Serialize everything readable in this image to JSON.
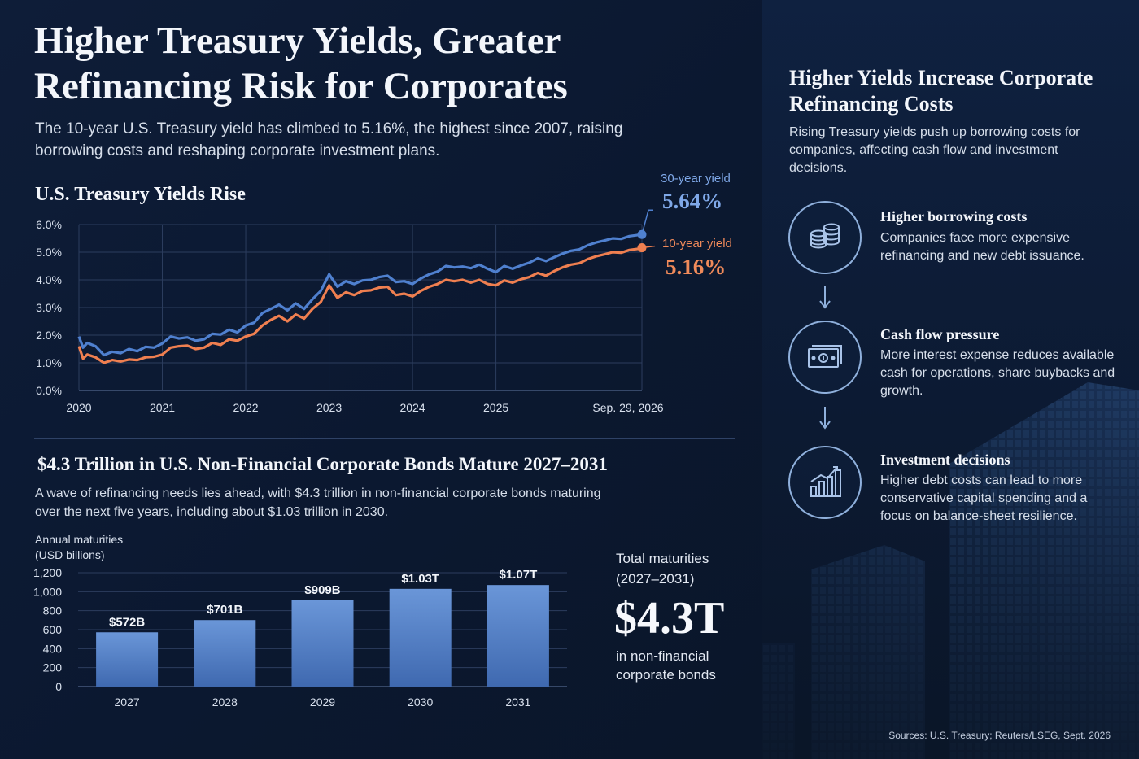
{
  "header": {
    "title": "Higher Treasury Yields, Greater Refinancing Risk for Corporates",
    "subtitle": "The 10-year U.S. Treasury yield has climbed to 5.16%, the highest since 2007, raising borrowing costs and reshaping corporate investment plans."
  },
  "colors": {
    "series_30y": "#4f80cf",
    "series_10y": "#ef7f50",
    "label_30y": "#7fa8e8",
    "label_10y": "#f08a5a",
    "bar_top": "#6a96d8",
    "bar_bottom": "#3f69b0"
  },
  "yield_section": {
    "title": "U.S. Treasury Yields Rise",
    "end_labels": {
      "s30_name": "30-year yield",
      "s30_value": "5.64%",
      "s10_name": "10-year yield",
      "s10_value": "5.16%"
    }
  },
  "bonds_section": {
    "title": "$4.3 Trillion in U.S. Non-Financial Corporate Bonds Mature 2027–2031",
    "description": "A wave of refinancing needs lies ahead, with $4.3 trillion in non-financial corporate bonds maturing over the next five years, including about $1.03 trillion in 2030.",
    "axis_title_line1": "Annual maturities",
    "axis_title_line2": "(USD billions)"
  },
  "total_box": {
    "label_line1": "Total maturities",
    "label_line2": "(2027–2031)",
    "value": "$4.3T",
    "sub_line1": "in non-financial",
    "sub_line2": "corporate bonds"
  },
  "right_panel": {
    "title": "Higher Yields Increase Corporate Refinancing Costs",
    "description": "Rising Treasury yields push up borrowing costs for companies, affecting cash flow and investment decisions.",
    "items": [
      {
        "icon": "coins-stack-icon",
        "title": "Higher borrowing costs",
        "desc": "Companies face more expensive refinancing and new debt issuance."
      },
      {
        "icon": "banknote-icon",
        "title": "Cash flow pressure",
        "desc": "More interest expense reduces available cash for operations, share buybacks and growth."
      },
      {
        "icon": "bar-chart-growth-icon",
        "title": "Investment decisions",
        "desc": "Higher debt costs can lead to more conservative capital spending and a focus on balance-sheet resilience."
      }
    ]
  },
  "sources": "Sources: U.S. Treasury; Reuters/LSEG, Sept. 2026",
  "chart_data": [
    {
      "type": "line",
      "title": "U.S. Treasury Yields Rise",
      "x_ticks": [
        "2020",
        "2021",
        "2022",
        "2023",
        "2024",
        "2025",
        "Sep. 29, 2026"
      ],
      "x_tick_values": [
        2020,
        2021,
        2022,
        2023,
        2024,
        2025,
        2026.75
      ],
      "xlim": [
        2020,
        2026.75
      ],
      "y_ticks": [
        "0.0%",
        "1.0%",
        "2.0%",
        "3.0%",
        "4.0%",
        "5.0%",
        "6.0%"
      ],
      "ylim": [
        0,
        6
      ],
      "grid": true,
      "series": [
        {
          "name": "30-year yield",
          "x": [
            2020,
            2020.05,
            2020.1,
            2020.2,
            2020.3,
            2020.4,
            2020.5,
            2020.6,
            2020.7,
            2020.8,
            2020.9,
            2021,
            2021.1,
            2021.2,
            2021.3,
            2021.4,
            2021.5,
            2021.6,
            2021.7,
            2021.8,
            2021.9,
            2022,
            2022.1,
            2022.2,
            2022.3,
            2022.4,
            2022.5,
            2022.6,
            2022.7,
            2022.8,
            2022.9,
            2023,
            2023.1,
            2023.2,
            2023.3,
            2023.4,
            2023.5,
            2023.6,
            2023.7,
            2023.8,
            2023.9,
            2024,
            2024.1,
            2024.2,
            2024.3,
            2024.4,
            2024.5,
            2024.6,
            2024.7,
            2024.8,
            2024.9,
            2025,
            2025.1,
            2025.2,
            2025.3,
            2025.4,
            2025.5,
            2025.6,
            2025.7,
            2025.8,
            2025.9,
            2026,
            2026.1,
            2026.2,
            2026.3,
            2026.4,
            2026.5,
            2026.6,
            2026.7,
            2026.75
          ],
          "y": [
            1.95,
            1.55,
            1.72,
            1.6,
            1.28,
            1.4,
            1.35,
            1.5,
            1.42,
            1.58,
            1.55,
            1.7,
            1.95,
            1.88,
            1.92,
            1.8,
            1.85,
            2.05,
            2.02,
            2.2,
            2.1,
            2.35,
            2.45,
            2.8,
            2.95,
            3.1,
            2.9,
            3.15,
            2.95,
            3.3,
            3.6,
            4.2,
            3.75,
            3.95,
            3.85,
            3.98,
            4.0,
            4.1,
            4.15,
            3.92,
            3.95,
            3.85,
            4.05,
            4.2,
            4.3,
            4.5,
            4.45,
            4.48,
            4.42,
            4.55,
            4.4,
            4.28,
            4.5,
            4.4,
            4.52,
            4.62,
            4.78,
            4.68,
            4.82,
            4.95,
            5.05,
            5.1,
            5.25,
            5.35,
            5.42,
            5.5,
            5.48,
            5.58,
            5.62,
            5.64
          ]
        },
        {
          "name": "10-year yield",
          "x": [
            2020,
            2020.05,
            2020.1,
            2020.2,
            2020.3,
            2020.4,
            2020.5,
            2020.6,
            2020.7,
            2020.8,
            2020.9,
            2021,
            2021.1,
            2021.2,
            2021.3,
            2021.4,
            2021.5,
            2021.6,
            2021.7,
            2021.8,
            2021.9,
            2022,
            2022.1,
            2022.2,
            2022.3,
            2022.4,
            2022.5,
            2022.6,
            2022.7,
            2022.8,
            2022.9,
            2023,
            2023.1,
            2023.2,
            2023.3,
            2023.4,
            2023.5,
            2023.6,
            2023.7,
            2023.8,
            2023.9,
            2024,
            2024.1,
            2024.2,
            2024.3,
            2024.4,
            2024.5,
            2024.6,
            2024.7,
            2024.8,
            2024.9,
            2025,
            2025.1,
            2025.2,
            2025.3,
            2025.4,
            2025.5,
            2025.6,
            2025.7,
            2025.8,
            2025.9,
            2026,
            2026.1,
            2026.2,
            2026.3,
            2026.4,
            2026.5,
            2026.6,
            2026.7,
            2026.75
          ],
          "y": [
            1.6,
            1.15,
            1.3,
            1.2,
            1.0,
            1.1,
            1.05,
            1.12,
            1.1,
            1.2,
            1.22,
            1.3,
            1.55,
            1.6,
            1.62,
            1.5,
            1.55,
            1.72,
            1.65,
            1.85,
            1.8,
            1.95,
            2.05,
            2.35,
            2.55,
            2.7,
            2.5,
            2.75,
            2.6,
            2.95,
            3.2,
            3.8,
            3.35,
            3.55,
            3.45,
            3.6,
            3.62,
            3.72,
            3.75,
            3.45,
            3.5,
            3.4,
            3.6,
            3.75,
            3.85,
            4.0,
            3.95,
            4.0,
            3.9,
            4.0,
            3.85,
            3.8,
            3.98,
            3.9,
            4.02,
            4.1,
            4.25,
            4.15,
            4.32,
            4.45,
            4.55,
            4.6,
            4.75,
            4.85,
            4.92,
            5.0,
            4.98,
            5.08,
            5.12,
            5.16
          ]
        }
      ],
      "end_labels": {
        "30-year yield": "5.64%",
        "10-year yield": "5.16%"
      }
    },
    {
      "type": "bar",
      "title": "$4.3 Trillion in U.S. Non-Financial Corporate Bonds Mature 2027–2031",
      "ylabel": "Annual maturities (USD billions)",
      "categories": [
        "2027",
        "2028",
        "2029",
        "2030",
        "2031"
      ],
      "values": [
        572,
        701,
        909,
        1030,
        1070
      ],
      "value_labels": [
        "$572B",
        "$701B",
        "$909B",
        "$1.03T",
        "$1.07T"
      ],
      "y_ticks": [
        "0",
        "200",
        "400",
        "600",
        "800",
        "1,000",
        "1,200"
      ],
      "ylim": [
        0,
        1200
      ],
      "grid": true
    }
  ]
}
